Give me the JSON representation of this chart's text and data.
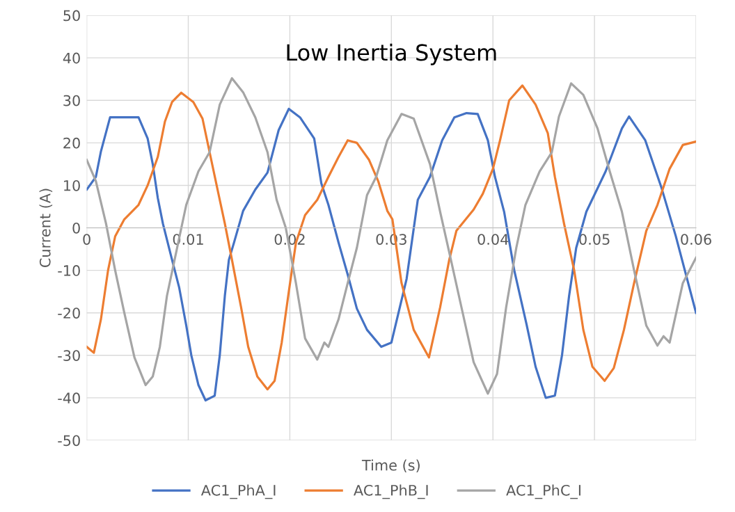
{
  "chart_data": {
    "type": "line",
    "title": "Low Inertia System",
    "xlabel": "Time (s)",
    "ylabel": "Current (A)",
    "xlim": [
      0,
      0.06
    ],
    "xticks": [
      0,
      0.01,
      0.02,
      0.03,
      0.04,
      0.05,
      0.06
    ],
    "ylim": [
      -50,
      50
    ],
    "yticks": [
      -50,
      -40,
      -30,
      -20,
      -10,
      0,
      10,
      20,
      30,
      40,
      50
    ],
    "grid": true,
    "legend": "bottom",
    "marker": "none",
    "line_style": "solid",
    "series": [
      {
        "name": "AC1_PhA_I",
        "color": "#4472c4",
        "x": [
          0,
          0.0009,
          0.0014,
          0.0023,
          0.0033,
          0.0051,
          0.006,
          0.0065,
          0.007,
          0.0075,
          0.0084,
          0.0091,
          0.0098,
          0.0103,
          0.011,
          0.0117,
          0.0126,
          0.0131,
          0.0136,
          0.014,
          0.0145,
          0.0154,
          0.0166,
          0.0178,
          0.0189,
          0.0199,
          0.021,
          0.0224,
          0.0231,
          0.0238,
          0.0248,
          0.0257,
          0.0266,
          0.0276,
          0.029,
          0.03,
          0.0315,
          0.0326,
          0.0338,
          0.035,
          0.0362,
          0.0374,
          0.0385,
          0.0395,
          0.0402,
          0.0411,
          0.0421,
          0.0433,
          0.0442,
          0.0452,
          0.0461,
          0.0468,
          0.0475,
          0.0482,
          0.0492,
          0.0511,
          0.0527,
          0.0534,
          0.055,
          0.0566,
          0.058,
          0.06
        ],
        "values": [
          9,
          12,
          18,
          26,
          26,
          26,
          21,
          15,
          7,
          1,
          -7.5,
          -14,
          -23,
          -30,
          -37,
          -40.6,
          -39.5,
          -30,
          -16,
          -7.5,
          -3.5,
          4,
          9,
          13,
          23,
          28,
          26,
          21,
          10.5,
          5.4,
          -3.5,
          -11,
          -19,
          -24,
          -28,
          -27,
          -12,
          6.6,
          12,
          20.6,
          26,
          27,
          26.8,
          20.6,
          12,
          3.8,
          -10,
          -22.6,
          -32.7,
          -40,
          -39.5,
          -30,
          -16,
          -4.7,
          3.8,
          13.3,
          23.4,
          26.2,
          20.6,
          9.4,
          -1.9,
          -20
        ]
      },
      {
        "name": "AC1_PhB_I",
        "color": "#ed7d31",
        "x": [
          0,
          0.0007,
          0.0014,
          0.0021,
          0.0028,
          0.0037,
          0.0051,
          0.006,
          0.007,
          0.0077,
          0.0084,
          0.0093,
          0.0105,
          0.0114,
          0.0121,
          0.0129,
          0.0136,
          0.0143,
          0.0152,
          0.0159,
          0.0168,
          0.0178,
          0.0185,
          0.0192,
          0.0199,
          0.0206,
          0.0215,
          0.0227,
          0.0238,
          0.0248,
          0.0257,
          0.0266,
          0.0278,
          0.0287,
          0.0296,
          0.0301,
          0.031,
          0.0322,
          0.0337,
          0.0348,
          0.0357,
          0.0364,
          0.0381,
          0.039,
          0.04,
          0.0407,
          0.0416,
          0.0429,
          0.0442,
          0.0454,
          0.0461,
          0.047,
          0.048,
          0.0489,
          0.0498,
          0.051,
          0.0519,
          0.0529,
          0.0539,
          0.0551,
          0.0562,
          0.0574,
          0.0587,
          0.06
        ],
        "values": [
          -28,
          -29.4,
          -21.5,
          -10,
          -2,
          2,
          5.4,
          10,
          16.7,
          25,
          29.6,
          31.8,
          29.6,
          25.7,
          17.8,
          8.8,
          1,
          -7.5,
          -18.7,
          -28,
          -35,
          -38,
          -36,
          -27,
          -15,
          -3.5,
          3,
          6.6,
          12,
          16.7,
          20.6,
          20,
          16,
          11,
          4,
          2,
          -13,
          -24,
          -30.5,
          -18.7,
          -7.5,
          -0.7,
          4.3,
          8,
          13.9,
          20.6,
          30,
          33.5,
          29,
          22.3,
          12,
          1,
          -10,
          -24,
          -32.7,
          -36,
          -33,
          -24,
          -13,
          -0.7,
          5.4,
          13.9,
          19.5,
          20.3
        ]
      },
      {
        "name": "AC1_PhC_I",
        "color": "#a5a5a5",
        "x": [
          0,
          0.0009,
          0.0019,
          0.0028,
          0.0037,
          0.0047,
          0.0058,
          0.0065,
          0.0072,
          0.0079,
          0.0089,
          0.0098,
          0.011,
          0.0121,
          0.0131,
          0.0143,
          0.0154,
          0.0166,
          0.0178,
          0.0187,
          0.0196,
          0.0206,
          0.0215,
          0.0227,
          0.0234,
          0.0238,
          0.0248,
          0.0257,
          0.0266,
          0.0276,
          0.0285,
          0.0296,
          0.031,
          0.0322,
          0.0338,
          0.0348,
          0.0357,
          0.0369,
          0.0381,
          0.0395,
          0.0404,
          0.0413,
          0.0423,
          0.0432,
          0.0446,
          0.0458,
          0.0465,
          0.0477,
          0.0489,
          0.0503,
          0.0515,
          0.0527,
          0.0539,
          0.0551,
          0.0562,
          0.0568,
          0.0574,
          0.0587,
          0.06
        ],
        "values": [
          16,
          11,
          1,
          -10,
          -20,
          -30.5,
          -37,
          -35,
          -28,
          -16,
          -4.7,
          5.4,
          13.3,
          17.8,
          29,
          35.2,
          31.9,
          26,
          17.8,
          6.6,
          0,
          -13,
          -26,
          -31,
          -27,
          -28,
          -21.5,
          -13,
          -4.7,
          7.7,
          12,
          20.6,
          26.8,
          25.7,
          15,
          3.8,
          -5.8,
          -18.7,
          -31.6,
          -39,
          -34.4,
          -18.7,
          -4.7,
          5.4,
          13.3,
          17.8,
          26.2,
          34,
          31.3,
          23.4,
          13.3,
          3.8,
          -10,
          -23,
          -27.7,
          -25.5,
          -27,
          -13,
          -7
        ]
      }
    ]
  }
}
